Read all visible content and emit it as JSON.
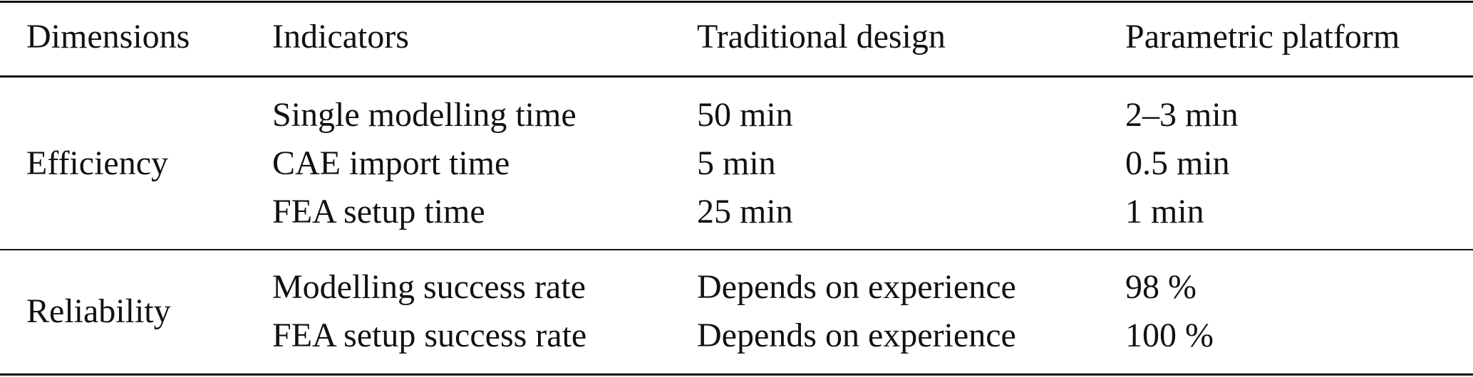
{
  "table": {
    "header": [
      "Dimensions",
      "Indicators",
      "Traditional design",
      "Parametric platform"
    ],
    "groups": [
      {
        "dimension": "Efficiency",
        "rows": [
          [
            "Single modelling time",
            "50 min",
            "2–3 min"
          ],
          [
            "CAE import time",
            "5 min",
            "0.5 min"
          ],
          [
            "FEA setup time",
            "25 min",
            "1 min"
          ]
        ]
      },
      {
        "dimension": "Reliability",
        "rows": [
          [
            "Modelling success rate",
            "Depends on experience",
            "98 %"
          ],
          [
            "FEA setup success rate",
            "Depends on experience",
            "100 %"
          ]
        ]
      }
    ]
  }
}
